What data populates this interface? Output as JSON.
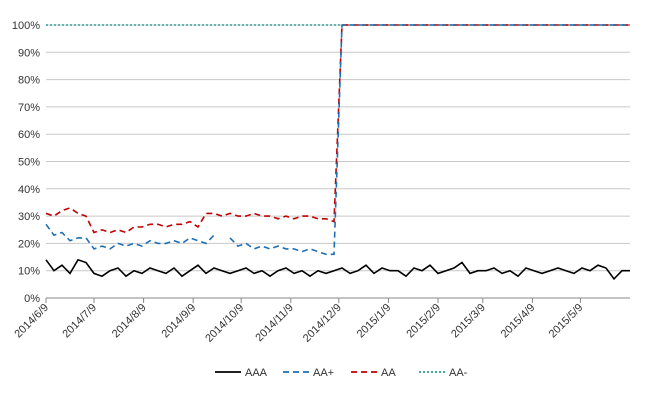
{
  "chart_data": {
    "type": "line",
    "x": [
      0,
      5,
      10,
      15,
      20,
      25,
      30,
      35,
      40,
      45,
      50,
      55,
      60,
      65,
      70,
      75,
      80,
      85,
      90,
      95,
      100,
      105,
      110,
      115,
      120,
      125,
      130,
      135,
      140,
      145,
      150,
      155,
      160,
      165,
      170,
      175,
      180,
      185,
      190,
      195,
      200,
      205,
      210,
      215,
      220,
      225,
      230,
      235,
      240,
      245,
      250,
      255,
      260,
      265,
      270,
      275,
      280,
      285,
      290,
      295,
      300,
      305,
      310,
      315,
      320,
      325,
      330,
      335,
      340,
      345,
      350,
      355,
      360,
      365
    ],
    "xlim": [
      0,
      365
    ],
    "xticks": [
      {
        "value": 0,
        "label": "2014/6/9"
      },
      {
        "value": 30,
        "label": "2014/7/9"
      },
      {
        "value": 61,
        "label": "2014/8/9"
      },
      {
        "value": 92,
        "label": "2014/9/9"
      },
      {
        "value": 122,
        "label": "2014/10/9"
      },
      {
        "value": 153,
        "label": "2014/11/9"
      },
      {
        "value": 183,
        "label": "2014/12/9"
      },
      {
        "value": 214,
        "label": "2015/1/9"
      },
      {
        "value": 245,
        "label": "2015/2/9"
      },
      {
        "value": 273,
        "label": "2015/3/9"
      },
      {
        "value": 304,
        "label": "2015/4/9"
      },
      {
        "value": 334,
        "label": "2015/5/9"
      }
    ],
    "ylim": [
      0,
      100
    ],
    "yticks": [
      {
        "value": 0,
        "label": "0%"
      },
      {
        "value": 10,
        "label": "10%"
      },
      {
        "value": 20,
        "label": "20%"
      },
      {
        "value": 30,
        "label": "30%"
      },
      {
        "value": 40,
        "label": "40%"
      },
      {
        "value": 50,
        "label": "50%"
      },
      {
        "value": 60,
        "label": "60%"
      },
      {
        "value": 70,
        "label": "70%"
      },
      {
        "value": 80,
        "label": "80%"
      },
      {
        "value": 90,
        "label": "90%"
      },
      {
        "value": 100,
        "label": "100%"
      }
    ],
    "grid": true,
    "legend": "bottom",
    "series": [
      {
        "name": "AAA",
        "color": "#000000",
        "dash": "solid",
        "values": [
          14,
          10,
          12,
          9,
          14,
          13,
          9,
          8,
          10,
          11,
          8,
          10,
          9,
          11,
          10,
          9,
          11,
          8,
          10,
          12,
          9,
          11,
          10,
          9,
          10,
          11,
          9,
          10,
          8,
          10,
          11,
          9,
          10,
          8,
          10,
          9,
          10,
          11,
          9,
          10,
          12,
          9,
          11,
          10,
          10,
          8,
          11,
          10,
          12,
          9,
          10,
          11,
          13,
          9,
          10,
          10,
          11,
          9,
          10,
          8,
          11,
          10,
          9,
          10,
          11,
          10,
          9,
          11,
          10,
          12,
          11,
          7,
          10,
          10
        ]
      },
      {
        "name": "AA+",
        "color": "#1f6fb4",
        "dash": "dashed",
        "values": [
          27,
          23,
          24,
          21,
          22,
          22,
          18,
          19,
          18,
          20,
          19,
          20,
          19,
          21,
          20,
          20,
          21,
          20,
          22,
          21,
          20,
          23,
          null,
          22,
          19,
          20,
          18,
          19,
          18,
          19,
          18,
          18,
          17,
          18,
          17,
          16,
          16,
          100,
          100,
          100,
          100,
          100,
          100,
          100,
          100,
          100,
          100,
          100,
          100,
          100,
          100,
          100,
          100,
          100,
          100,
          100,
          100,
          100,
          100,
          100,
          100,
          100,
          100,
          100,
          100,
          100,
          100,
          100,
          100,
          100,
          100,
          100,
          100,
          100
        ]
      },
      {
        "name": "AA",
        "color": "#c00000",
        "dash": "dashed",
        "values": [
          31,
          30,
          32,
          33,
          31,
          30,
          24,
          25,
          24,
          25,
          24,
          26,
          26,
          27,
          27,
          26,
          27,
          27,
          28,
          26,
          31,
          31,
          30,
          31,
          30,
          30,
          31,
          30,
          30,
          29,
          30,
          29,
          30,
          30,
          29,
          29,
          28,
          100,
          100,
          100,
          100,
          100,
          100,
          100,
          100,
          100,
          100,
          100,
          100,
          100,
          100,
          100,
          100,
          100,
          100,
          100,
          100,
          100,
          100,
          100,
          100,
          100,
          100,
          100,
          100,
          100,
          100,
          100,
          100,
          100,
          100,
          100,
          100,
          100
        ]
      },
      {
        "name": "AA-",
        "color": "#2aa198",
        "dash": "dotted",
        "values": [
          100,
          100,
          100,
          100,
          100,
          100,
          100,
          100,
          100,
          100,
          100,
          100,
          100,
          100,
          100,
          100,
          100,
          100,
          100,
          100,
          100,
          100,
          100,
          100,
          100,
          100,
          100,
          100,
          100,
          100,
          100,
          100,
          100,
          100,
          100,
          100,
          100,
          100,
          100,
          100,
          100,
          100,
          100,
          100,
          100,
          100,
          100,
          100,
          100,
          100,
          100,
          100,
          100,
          100,
          100,
          100,
          100,
          100,
          100,
          100,
          100,
          100,
          100,
          100,
          100,
          100,
          100,
          100,
          100,
          100,
          100,
          100,
          100,
          100
        ]
      }
    ]
  }
}
